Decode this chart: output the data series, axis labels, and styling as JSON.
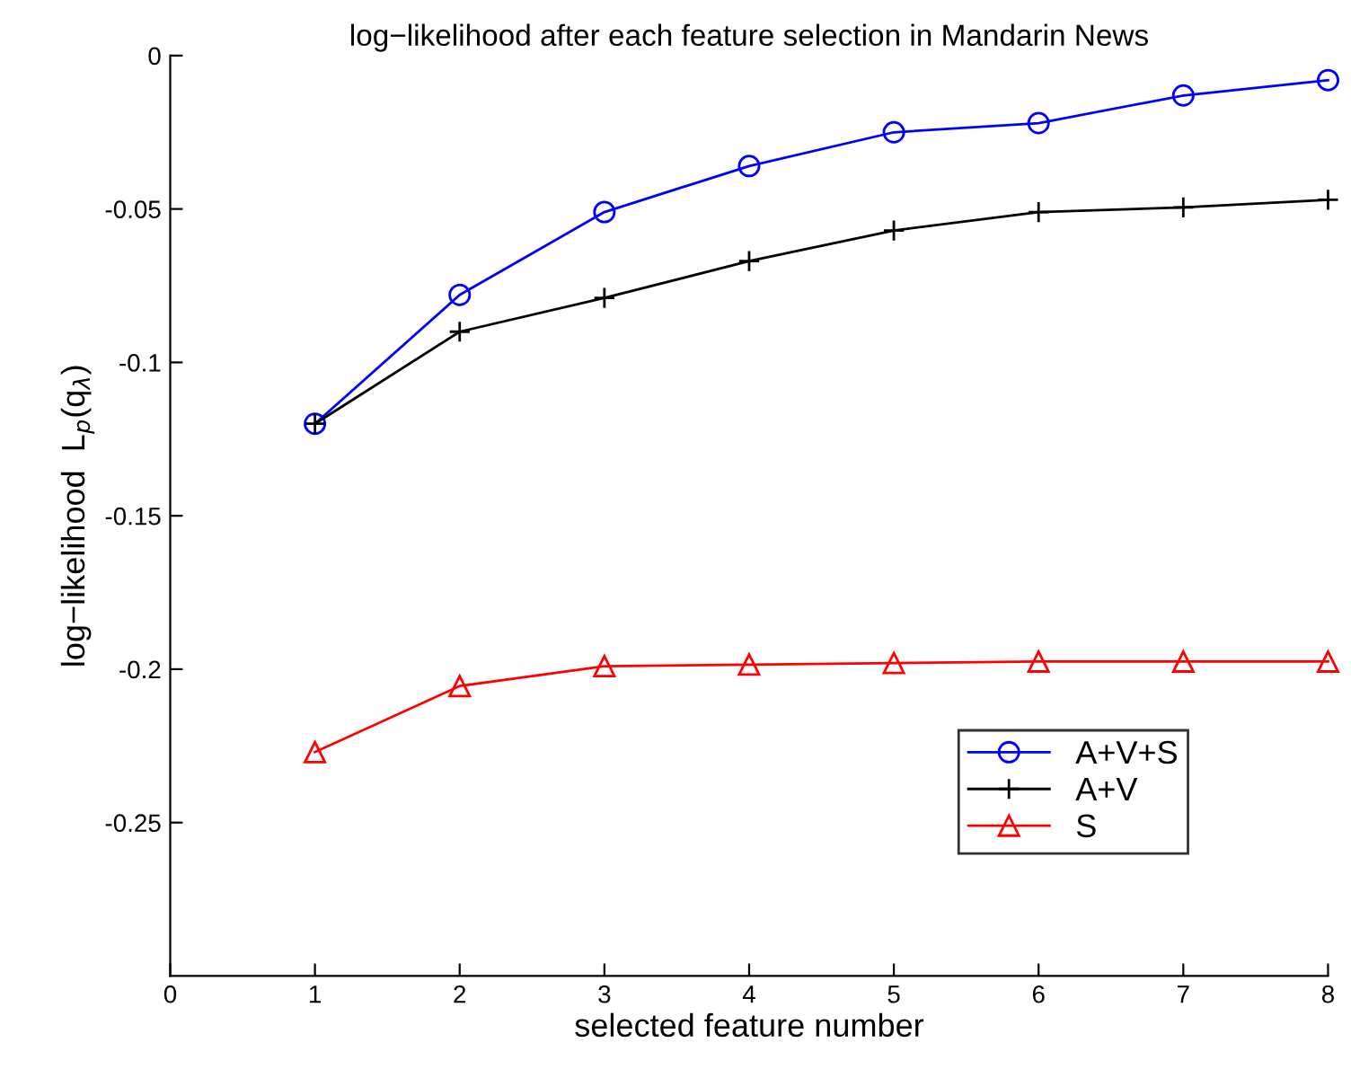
{
  "chart_data": {
    "type": "line",
    "title": "log−likelihood after each feature selection in Mandarin News",
    "xlabel": "selected feature number",
    "ylabel": "log−likelihood  L$_{p}$(q$_{λ}$)",
    "x": [
      1,
      2,
      3,
      4,
      5,
      6,
      7,
      8
    ],
    "series": [
      {
        "name": "A+V+S",
        "color": "#0000ff",
        "marker": "circle",
        "values": [
          -0.12,
          -0.078,
          -0.051,
          -0.036,
          -0.025,
          -0.022,
          -0.013,
          -0.008
        ]
      },
      {
        "name": "A+V",
        "color": "#000000",
        "marker": "cross",
        "values": [
          -0.12,
          -0.09,
          -0.079,
          -0.067,
          -0.057,
          -0.051,
          -0.0495,
          -0.047
        ]
      },
      {
        "name": "S",
        "color": "#ff0000",
        "marker": "triangle",
        "values": [
          -0.227,
          -0.2055,
          -0.199,
          -0.1985,
          -0.198,
          -0.1975,
          -0.1975,
          -0.1975
        ]
      }
    ],
    "xlim": [
      0,
      8
    ],
    "xticks": [
      0,
      1,
      2,
      3,
      4,
      5,
      6,
      7,
      8
    ],
    "ylim": [
      -0.3,
      0
    ],
    "yticks": [
      -0.25,
      -0.2,
      -0.15,
      -0.1,
      -0.05,
      0
    ],
    "grid": false,
    "legend": "bottom right",
    "line_style": "solid"
  }
}
